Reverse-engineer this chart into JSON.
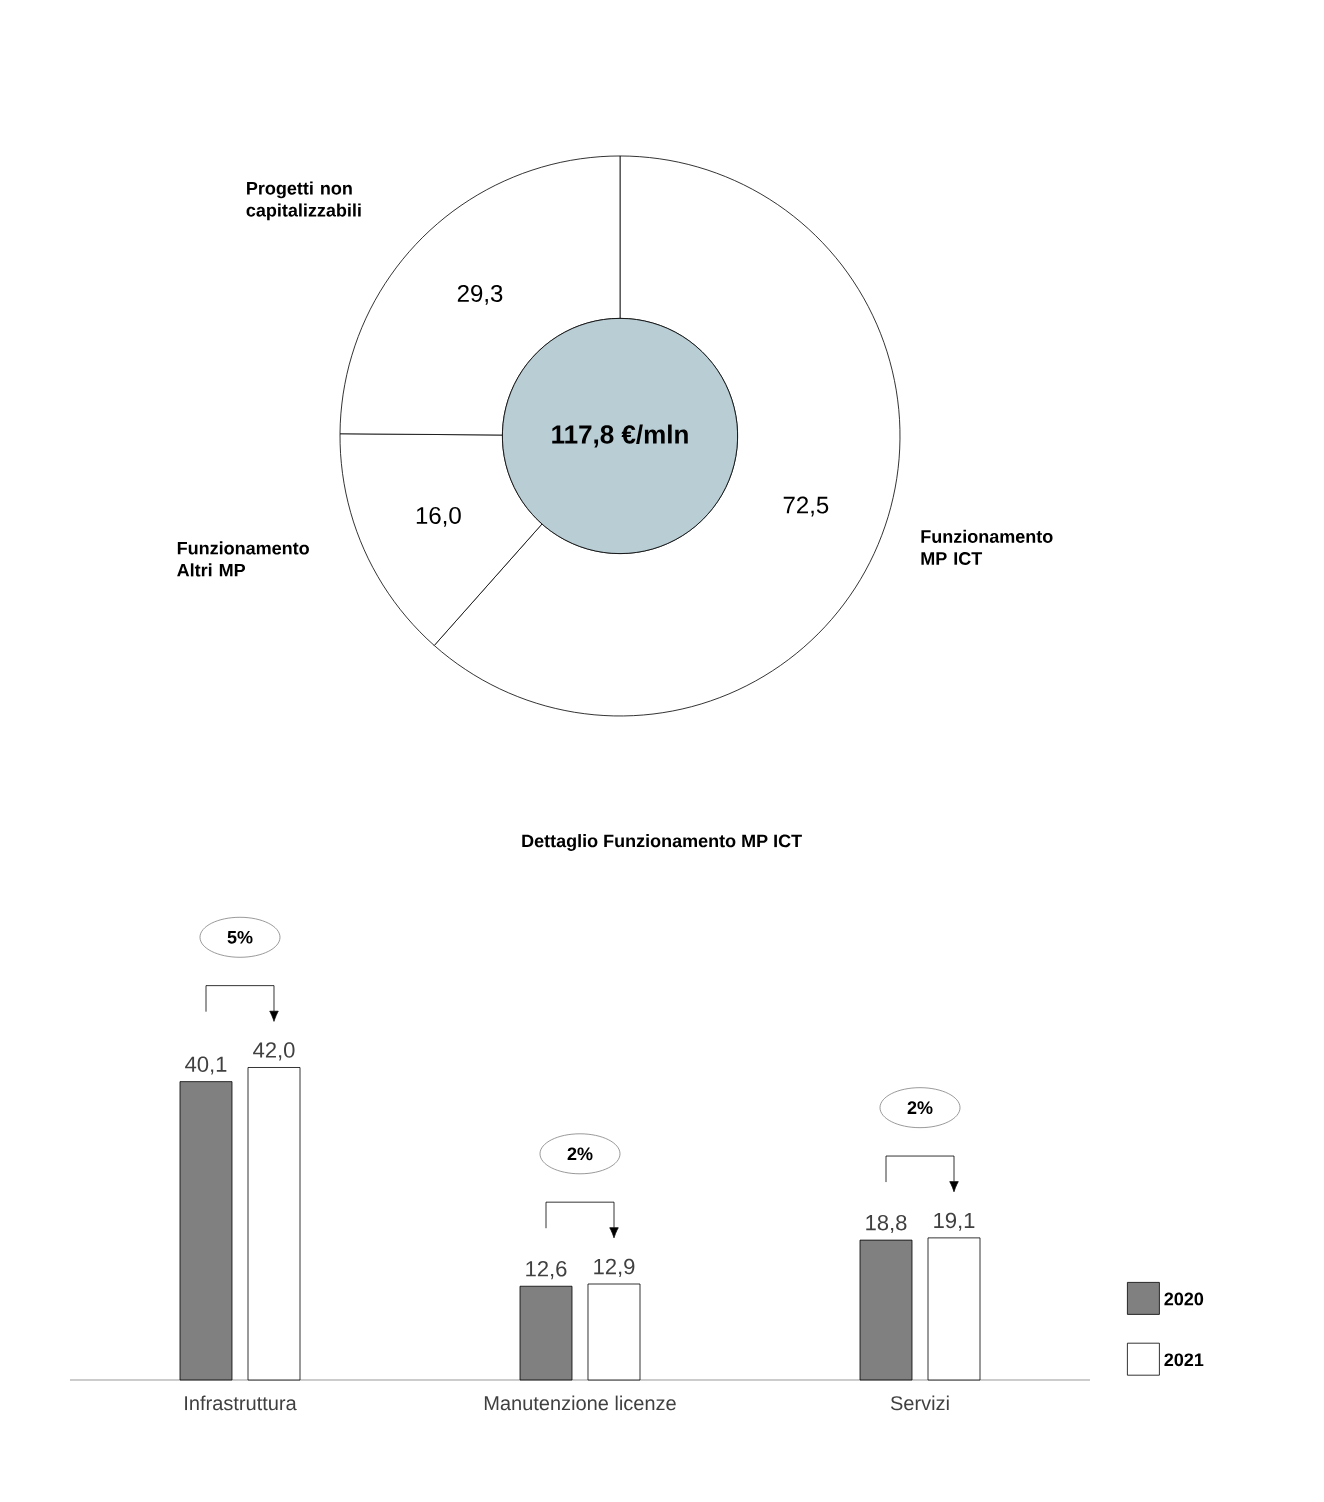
{
  "chart_data": [
    {
      "type": "donut",
      "categories": [
        "Funzionamento MP ICT",
        "Funzionamento Altri MP",
        "Progetti non capitalizzabili"
      ],
      "values": [
        72.5,
        16.0,
        29.3
      ],
      "value_labels": [
        "72,5",
        "16,0",
        "29,3"
      ],
      "colors": [
        "#ffffff",
        "#ffffff",
        "#ffffff"
      ],
      "annotations": [
        "117,8 €/mln"
      ]
    },
    {
      "type": "bar",
      "title": "Dettaglio Funzionamento MP ICT",
      "categories": [
        "Infrastruttura",
        "Manutenzione licenze",
        "Servizi"
      ],
      "series": [
        {
          "name": "2020",
          "color": "#808080",
          "values": [
            40.1,
            12.6,
            18.8
          ],
          "value_labels": [
            "40,1",
            "12,6",
            "18,8"
          ]
        },
        {
          "name": "2021",
          "color": "#ffffff",
          "values": [
            42.0,
            12.9,
            19.1
          ],
          "value_labels": [
            "42,0",
            "12,9",
            "19,1"
          ]
        }
      ],
      "annotations": [
        "5%",
        "2%",
        "2%"
      ],
      "legend": "bottom right",
      "tick_labels": "x"
    }
  ]
}
